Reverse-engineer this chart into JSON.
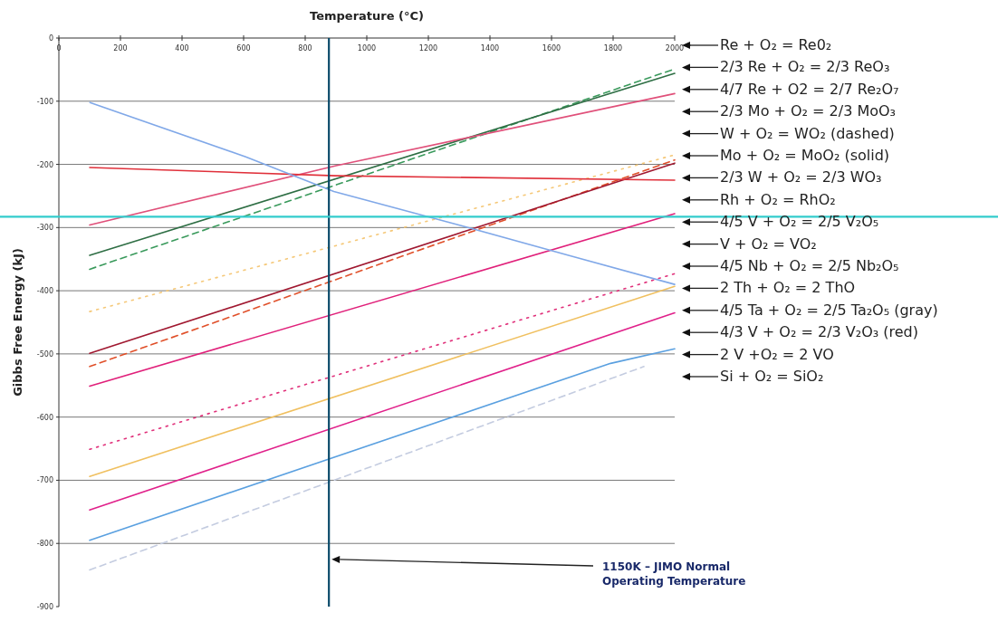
{
  "chart_data": {
    "type": "line",
    "xlabel": "Temperature (°C)",
    "ylabel": "Gibbs Free Energy (kJ)",
    "xlim": [
      0,
      2000
    ],
    "xticks": [
      0,
      200,
      400,
      600,
      800,
      1000,
      1200,
      1400,
      1600,
      1800,
      2000
    ],
    "ylim": [
      -900,
      0
    ],
    "yticks": [
      -900,
      -800,
      -700,
      -600,
      -500,
      -400,
      -300,
      -200,
      -100,
      0
    ],
    "grid": "y",
    "series": [
      {
        "color": "#3a9a5c",
        "line_style": "dashed",
        "x": [
          100,
          2000
        ],
        "values": [
          -366,
          -49
        ]
      },
      {
        "color": "#2e6e44",
        "line_style": "solid",
        "x": [
          100,
          2000
        ],
        "values": [
          -344,
          -56
        ]
      },
      {
        "color": "#e0507a",
        "line_style": "solid",
        "x": [
          100,
          900,
          2000
        ],
        "values": [
          -296,
          -202,
          -88
        ]
      },
      {
        "color": "#f5c878",
        "line_style": "dotted",
        "x": [
          100,
          2000
        ],
        "values": [
          -433,
          -185
        ]
      },
      {
        "color": "#e0502a",
        "line_style": "dashed",
        "x": [
          100,
          2000
        ],
        "values": [
          -520,
          -193
        ]
      },
      {
        "color": "#a01830",
        "line_style": "solid",
        "x": [
          100,
          2000
        ],
        "values": [
          -499,
          -198
        ]
      },
      {
        "color": "#e0303a",
        "line_style": "solid",
        "x": [
          100,
          900,
          2000
        ],
        "values": [
          -205,
          -218,
          -225
        ]
      },
      {
        "color": "#e0207a",
        "line_style": "solid",
        "x": [
          100,
          2000
        ],
        "values": [
          -551,
          -278
        ]
      },
      {
        "color": "#e0307a",
        "line_style": "dotted",
        "x": [
          100,
          2000
        ],
        "values": [
          -651,
          -373
        ]
      },
      {
        "color": "#f0c060",
        "line_style": "solid",
        "x": [
          100,
          2000
        ],
        "values": [
          -694,
          -393
        ]
      },
      {
        "color": "#80a8e8",
        "line_style": "solid",
        "x": [
          101,
          607,
          893,
          1307,
          1663,
          2000
        ],
        "values": [
          -102,
          -188,
          -243,
          -297,
          -345,
          -390
        ]
      },
      {
        "color": "#e0208a",
        "line_style": "solid",
        "x": [
          100,
          2000
        ],
        "values": [
          -747,
          -435
        ]
      },
      {
        "color": "#5aa0e0",
        "line_style": "solid",
        "x": [
          100,
          1792,
          2000
        ],
        "values": [
          -795,
          -515,
          -492
        ]
      },
      {
        "color": "#c4cce0",
        "line_style": "dashed",
        "x": [
          100,
          1900
        ],
        "values": [
          -842,
          -520
        ]
      }
    ],
    "ref_lines": [
      {
        "axis": "x",
        "value": 877,
        "label": "1150K – JIMO Normal Operating Temperature",
        "color": "#0a4a6a"
      },
      {
        "axis": "y",
        "value": -283,
        "color": "#33cccc"
      }
    ],
    "annotations": [
      "Re + O₂ = Re0₂",
      "2/3 Re + O₂ = 2/3 ReO₃",
      "4/7 Re + O2 = 2/7 Re₂O₇",
      "2/3 Mo + O₂ = 2/3 MoO₃",
      "W + O₂ = WO₂ (dashed)",
      "Mo + O₂ = MoO₂ (solid)",
      "2/3 W + O₂ = 2/3 WO₃",
      "Rh + O₂ = RhO₂",
      "4/5 V + O₂ = 2/5 V₂O₅",
      "V + O₂ = VO₂",
      "4/5 Nb + O₂ = 2/5 Nb₂O₅",
      "2 Th + O₂ = 2 ThO",
      "4/5 Ta + O₂ = 2/5 Ta₂O₅ (gray)",
      "4/3 V + O₂ = 2/3 V₂O₃ (red)",
      "2 V +O₂ = 2 VO",
      "Si + O₂ = SiO₂"
    ]
  }
}
